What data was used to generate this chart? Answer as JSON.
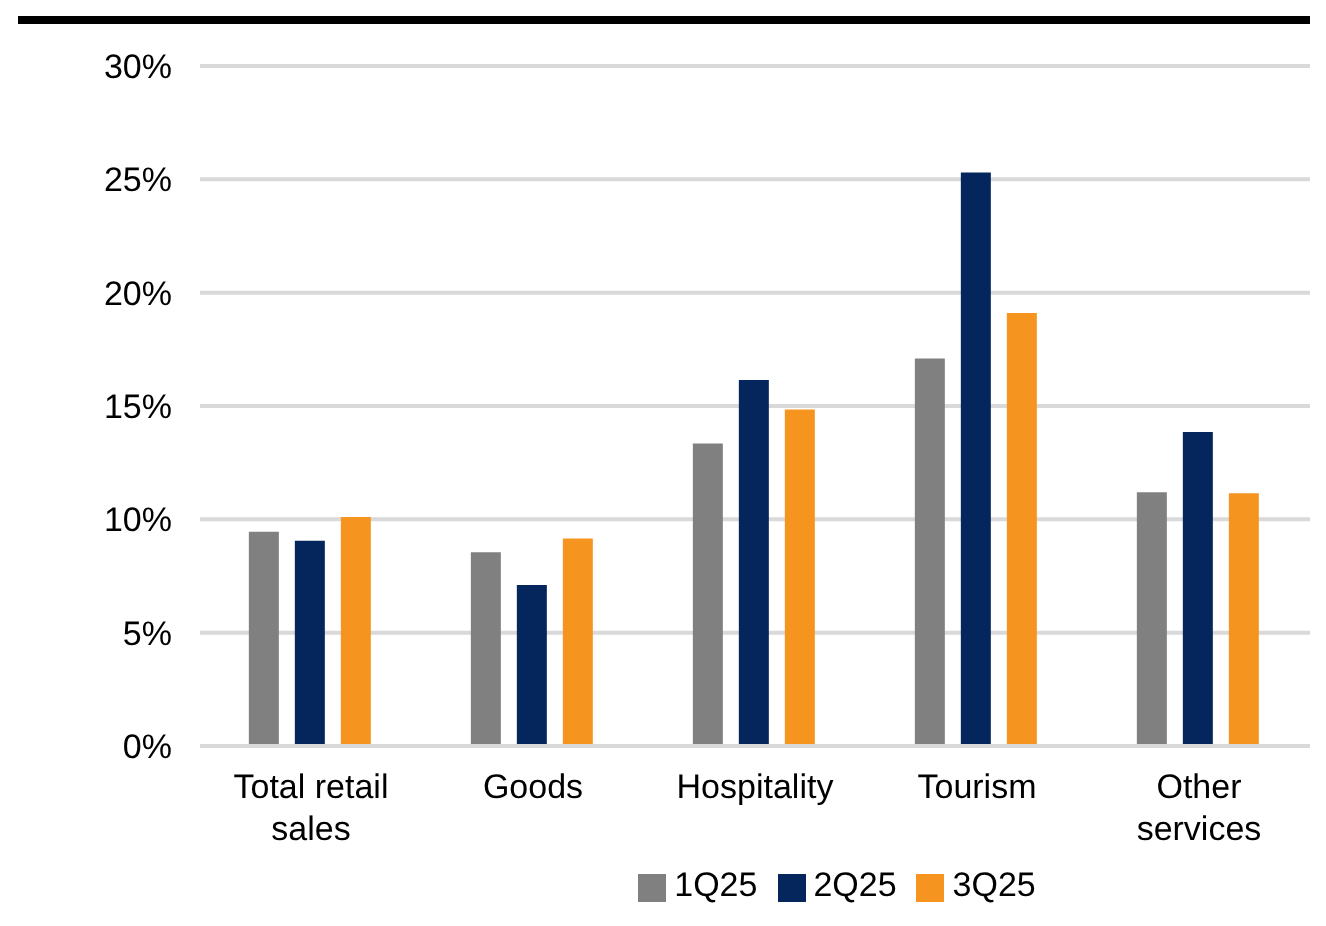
{
  "chart_data": {
    "type": "bar",
    "categories": [
      "Total retail sales",
      "Goods",
      "Hospitality",
      "Tourism",
      "Other services"
    ],
    "series": [
      {
        "name": "1Q25",
        "color": "#808080",
        "values": [
          9.45,
          8.55,
          13.35,
          17.1,
          11.2
        ]
      },
      {
        "name": "2Q25",
        "color": "#04265c",
        "values": [
          9.05,
          7.1,
          16.15,
          25.3,
          13.85
        ]
      },
      {
        "name": "3Q25",
        "color": "#f59520",
        "values": [
          10.1,
          9.15,
          14.85,
          19.1,
          11.15
        ]
      }
    ],
    "ylim": [
      0,
      30
    ],
    "yticks": [
      {
        "value": 0,
        "label": "0%"
      },
      {
        "value": 5,
        "label": "5%"
      },
      {
        "value": 10,
        "label": "10%"
      },
      {
        "value": 15,
        "label": "15%"
      },
      {
        "value": 20,
        "label": "20%"
      },
      {
        "value": 25,
        "label": "25%"
      },
      {
        "value": 30,
        "label": "30%"
      }
    ],
    "grid": "y",
    "legend": "bottom"
  }
}
